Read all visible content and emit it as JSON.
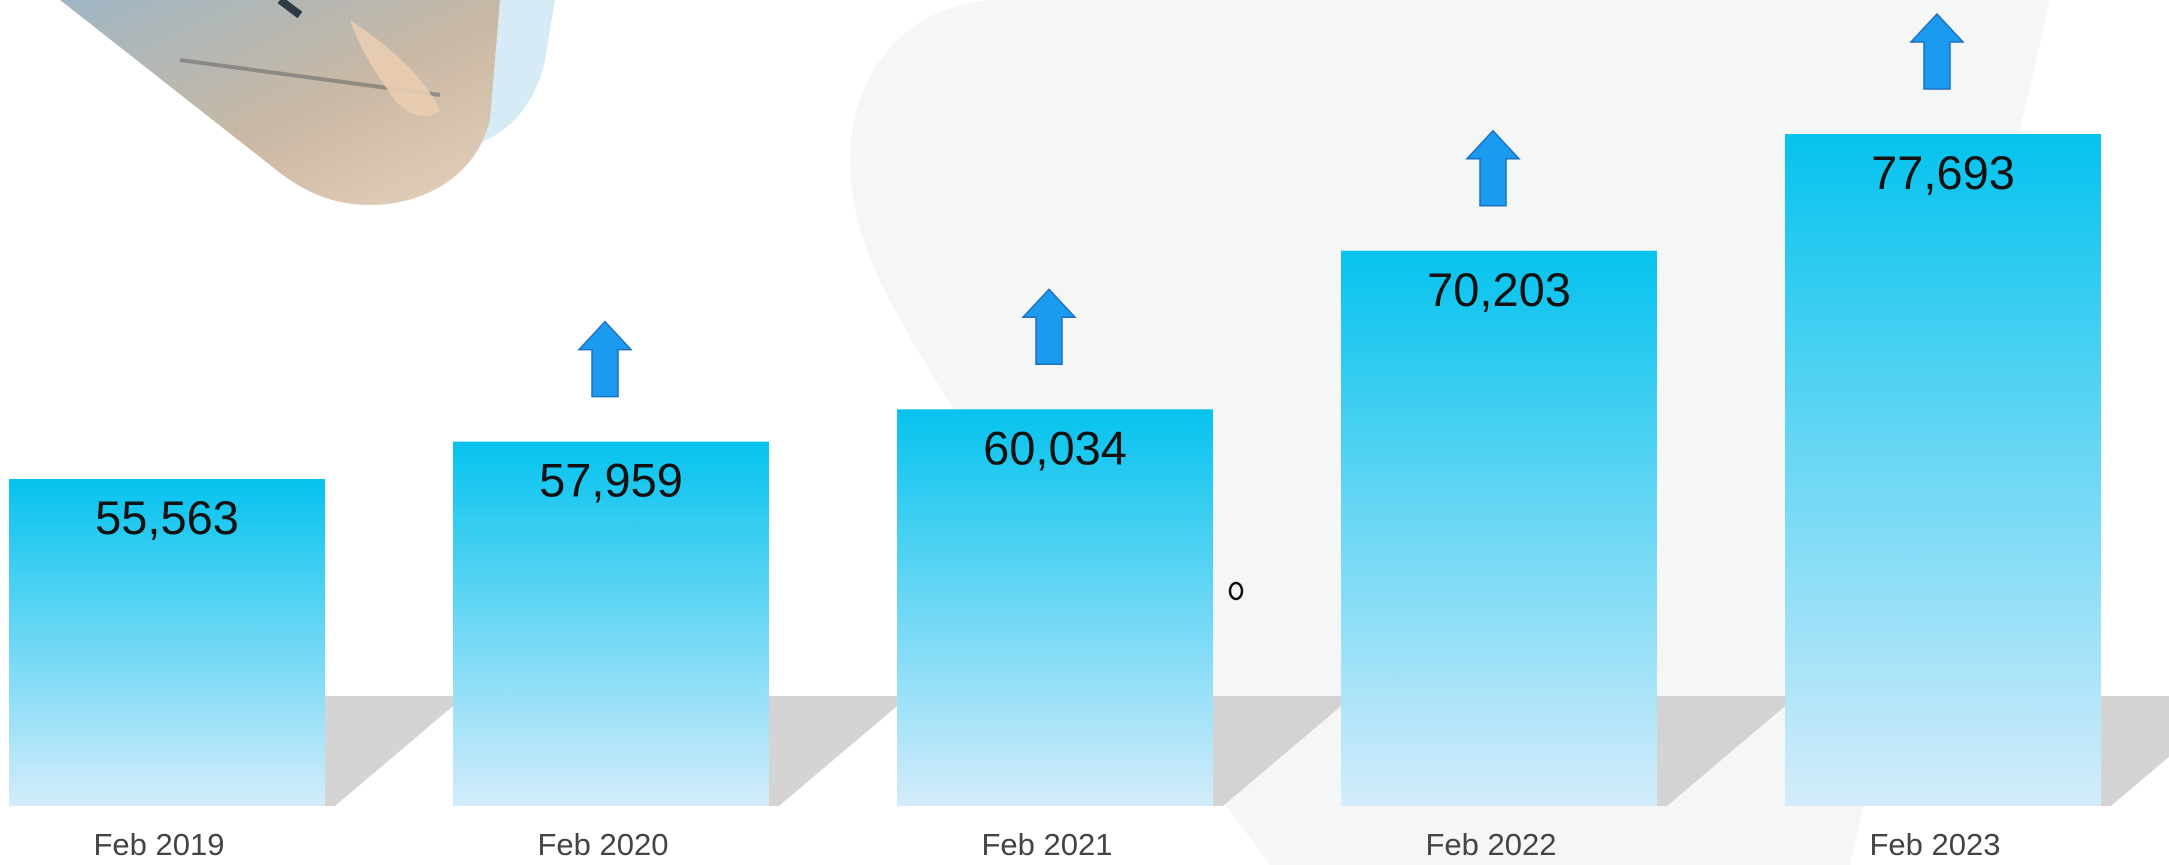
{
  "chart_data": {
    "type": "bar",
    "categories": [
      "Feb 2019",
      "Feb 2020",
      "Feb 2021",
      "Feb 2022",
      "Feb 2023"
    ],
    "values": [
      55563,
      57959,
      60034,
      70203,
      77693
    ],
    "value_labels": [
      "55,563",
      "57,959",
      "60,034",
      "70,203",
      "77,693"
    ],
    "increase_arrows": [
      false,
      true,
      true,
      true,
      true
    ],
    "colors": {
      "bar_top": "#05c3ee",
      "bar_bottom": "#d4ecfb",
      "arrow": "#1b9bf0",
      "arrow_stroke": "#1f6fc0",
      "shadow": "#cfcfcf",
      "label": "#444444",
      "value": "#111111"
    },
    "grid": false,
    "legend": "none"
  }
}
